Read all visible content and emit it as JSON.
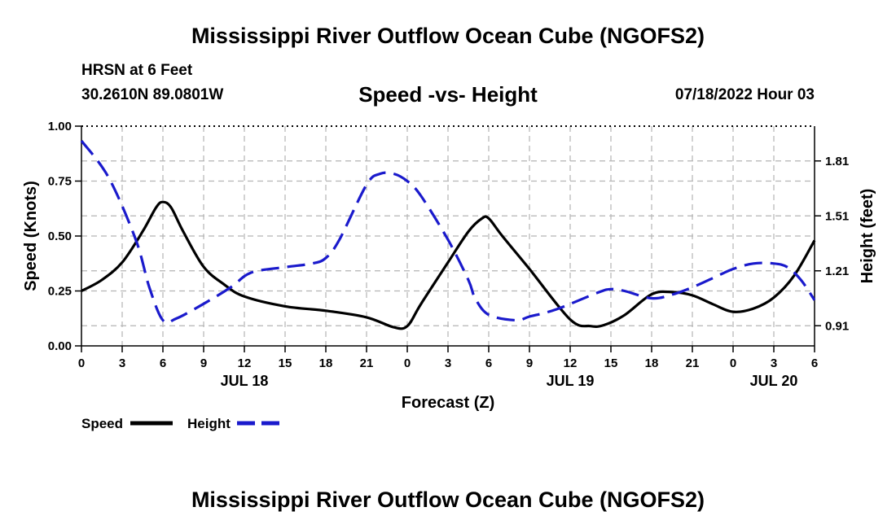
{
  "header": {
    "title": "Mississippi River Outflow Ocean Cube (NGOFS2)",
    "station": "HRSN at 6 Feet",
    "coords": "30.2610N  89.0801W",
    "subtitle": "Speed -vs- Height",
    "datetime": "07/18/2022 Hour 03"
  },
  "footer": {
    "title": "Mississippi River Outflow Ocean Cube (NGOFS2)"
  },
  "colors": {
    "speed": "#000000",
    "height": "#1a1acc",
    "grid": "#b4b4b4",
    "axis": "#000000"
  },
  "chart_data": {
    "type": "line",
    "title": "Speed -vs- Height",
    "xlabel": "Forecast (Z)",
    "ylabel": "Speed (Knots)",
    "y2label": "Height (feet)",
    "xlim": [
      0,
      54
    ],
    "ylim": [
      0,
      1
    ],
    "y2lim": [
      0.8,
      2.0
    ],
    "x_ticks": [
      0,
      3,
      6,
      9,
      12,
      15,
      18,
      21,
      24,
      27,
      30,
      33,
      36,
      39,
      42,
      45,
      48,
      51,
      54
    ],
    "x_tick_labels": [
      "0",
      "3",
      "6",
      "9",
      "12",
      "15",
      "18",
      "21",
      "0",
      "3",
      "6",
      "9",
      "12",
      "15",
      "18",
      "21",
      "0",
      "3",
      "6"
    ],
    "date_labels": [
      {
        "x": 12,
        "label": "JUL 18"
      },
      {
        "x": 36,
        "label": "JUL 19"
      },
      {
        "x": 51,
        "label": "JUL 20"
      }
    ],
    "y_ticks": [
      0,
      0.25,
      0.5,
      0.75,
      1.0
    ],
    "y_tick_labels": [
      "0.00",
      "0.25",
      "0.50",
      "0.75",
      "1.00"
    ],
    "y2_ticks": [
      0.91,
      1.21,
      1.51,
      1.81
    ],
    "y2_tick_labels": [
      "0.91",
      "1.21",
      "1.51",
      "1.81"
    ],
    "series": [
      {
        "name": "Speed",
        "axis": "left",
        "style": "solid",
        "x": [
          0,
          1.5,
          3,
          4.5,
          5.5,
          6,
          6.6,
          7.5,
          9,
          10.5,
          12,
          15,
          18,
          21,
          23,
          24,
          25,
          27,
          28.5,
          29.5,
          30,
          31,
          33,
          36,
          37.5,
          38.5,
          40,
          42,
          43.5,
          45,
          46.5,
          48,
          49.5,
          51,
          52.5,
          54
        ],
        "values": [
          0.25,
          0.3,
          0.38,
          0.52,
          0.63,
          0.655,
          0.63,
          0.52,
          0.36,
          0.28,
          0.225,
          0.18,
          0.16,
          0.13,
          0.085,
          0.09,
          0.19,
          0.38,
          0.52,
          0.58,
          0.58,
          0.5,
          0.35,
          0.12,
          0.09,
          0.095,
          0.14,
          0.235,
          0.245,
          0.23,
          0.19,
          0.155,
          0.17,
          0.22,
          0.32,
          0.48
        ]
      },
      {
        "name": "Height",
        "axis": "right",
        "style": "dashed",
        "x": [
          0,
          2,
          4,
          5,
          6,
          7,
          9,
          11,
          12.5,
          15,
          17,
          18,
          19,
          21,
          22,
          23,
          24,
          25,
          27,
          28.5,
          29,
          30,
          32,
          33,
          35,
          38,
          39,
          40,
          42,
          43.5,
          45,
          46.5,
          48,
          49.5,
          51,
          52,
          53,
          54
        ],
        "values": [
          1.92,
          1.72,
          1.38,
          1.12,
          0.94,
          0.95,
          1.03,
          1.12,
          1.2,
          1.23,
          1.25,
          1.28,
          1.38,
          1.68,
          1.74,
          1.74,
          1.7,
          1.62,
          1.38,
          1.16,
          1.06,
          0.97,
          0.94,
          0.96,
          1.0,
          1.09,
          1.11,
          1.1,
          1.06,
          1.08,
          1.12,
          1.17,
          1.22,
          1.25,
          1.25,
          1.23,
          1.16,
          1.05
        ]
      }
    ],
    "legend": {
      "position": "bottom-left",
      "entries": [
        {
          "label": "Speed",
          "style": "solid"
        },
        {
          "label": "Height",
          "style": "dashed"
        }
      ]
    }
  }
}
